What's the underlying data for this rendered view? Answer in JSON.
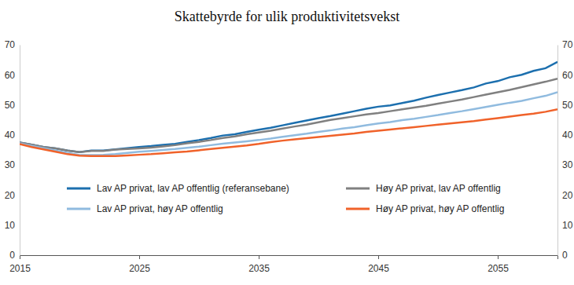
{
  "chart_data": {
    "type": "line",
    "title": "Skattebyrde for ulik produktivitetsvekst",
    "x": [
      2015,
      2016,
      2017,
      2018,
      2019,
      2020,
      2021,
      2022,
      2023,
      2024,
      2025,
      2026,
      2027,
      2028,
      2029,
      2030,
      2031,
      2032,
      2033,
      2034,
      2035,
      2036,
      2037,
      2038,
      2039,
      2040,
      2041,
      2042,
      2043,
      2044,
      2045,
      2046,
      2047,
      2048,
      2049,
      2050,
      2051,
      2052,
      2053,
      2054,
      2055,
      2056,
      2057,
      2058,
      2059,
      2060
    ],
    "series": [
      {
        "name": "Lav AP privat, lav AP offentlig (referansebane)",
        "color": "#1c6fae",
        "values": [
          37.5,
          36.8,
          36,
          35.5,
          34.8,
          34.3,
          34.8,
          34.8,
          35.2,
          35.6,
          36,
          36.3,
          36.7,
          37,
          37.7,
          38.3,
          39,
          39.8,
          40.2,
          41,
          41.7,
          42.4,
          43.2,
          44,
          44.8,
          45.6,
          46.3,
          47.1,
          47.9,
          48.7,
          49.4,
          49.8,
          50.6,
          51.4,
          52.4,
          53.3,
          54.1,
          54.9,
          55.8,
          57.1,
          57.9,
          59.2,
          60,
          61.3,
          62.2,
          64.3
        ]
      },
      {
        "name": "Høy AP privat, lav AP offentlig",
        "color": "#808080",
        "values": [
          37.5,
          36.8,
          36,
          35.5,
          34.8,
          34.3,
          34.7,
          34.7,
          35.1,
          35.3,
          35.5,
          35.8,
          36.2,
          36.6,
          37.2,
          37.7,
          38.3,
          39,
          39.5,
          40.2,
          40.8,
          41.4,
          42.1,
          42.8,
          43.4,
          44.2,
          45,
          45.6,
          46.2,
          46.8,
          47.3,
          47.9,
          48.5,
          49.1,
          49.7,
          50.4,
          51.1,
          51.8,
          52.6,
          53.4,
          54.2,
          55,
          55.9,
          56.8,
          57.7,
          58.7
        ]
      },
      {
        "name": "Lav AP privat, høy AP offentlig",
        "color": "#90bbdf",
        "values": [
          37.2,
          36.4,
          35.6,
          34.8,
          34,
          33.3,
          33.3,
          33.4,
          33.6,
          34,
          34.4,
          34.7,
          35,
          35.3,
          35.7,
          36.1,
          36.6,
          37.1,
          37.5,
          37.9,
          38.3,
          38.8,
          39.4,
          39.9,
          40.4,
          41,
          41.5,
          42.1,
          42.6,
          43.2,
          43.8,
          44.3,
          44.9,
          45.4,
          46,
          46.6,
          47.3,
          47.9,
          48.6,
          49.3,
          50,
          50.7,
          51.3,
          52.2,
          53,
          54.2
        ]
      },
      {
        "name": "Høy AP privat, høy AP offentlig",
        "color": "#f0622a",
        "values": [
          37,
          36,
          35.2,
          34.4,
          33.6,
          33.1,
          33,
          33,
          33,
          33.2,
          33.4,
          33.6,
          33.9,
          34.2,
          34.5,
          34.9,
          35.3,
          35.7,
          36.1,
          36.5,
          37,
          37.6,
          38.1,
          38.5,
          38.9,
          39.3,
          39.7,
          40.1,
          40.5,
          41,
          41.4,
          41.8,
          42.2,
          42.6,
          43,
          43.4,
          43.8,
          44.2,
          44.6,
          45.1,
          45.6,
          46.1,
          46.6,
          47.1,
          47.7,
          48.5
        ]
      }
    ],
    "xlim": [
      2015,
      2060
    ],
    "xticks": [
      2015,
      2025,
      2035,
      2045,
      2055
    ],
    "ylim": [
      0,
      70
    ],
    "yticks": [
      0,
      10,
      20,
      30,
      40,
      50,
      60,
      70
    ],
    "y2lim": [
      0,
      70
    ],
    "y2ticks": [
      0,
      10,
      20,
      30,
      40,
      50,
      60,
      70
    ],
    "grid": false,
    "legend": "bottom"
  }
}
